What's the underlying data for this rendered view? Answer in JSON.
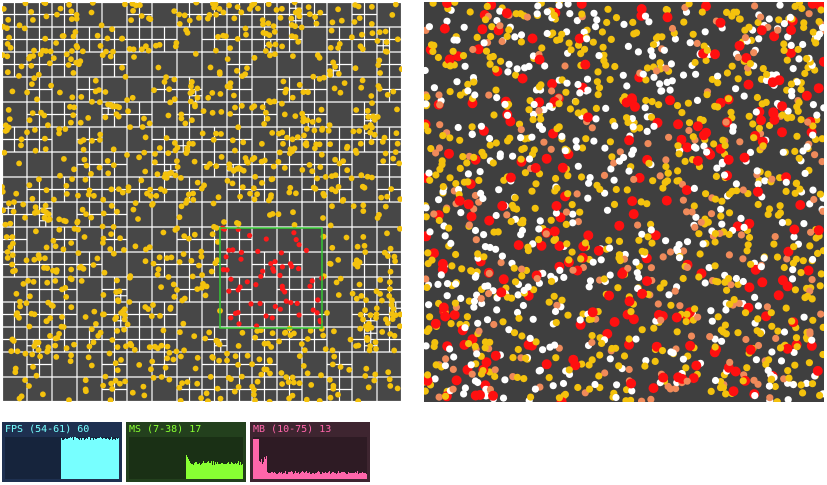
{
  "colors": {
    "grid_line": "#ffffff",
    "point_default": "#f4c20d",
    "point_in_query": "#ff1a1a",
    "query_box": "#33cc33",
    "particle_white": "#ffffff",
    "particle_yellow": "#f4c20d",
    "particle_salmon": "#f08a5a",
    "particle_red": "#ff1010"
  },
  "stats": [
    {
      "id": "fps",
      "label": "FPS (54-61) 60",
      "color": "#7ff",
      "bg": "#1e3050"
    },
    {
      "id": "ms",
      "label": "MS (7-38) 17",
      "color": "#8f3",
      "bg": "#23401d"
    },
    {
      "id": "mb",
      "label": "MB (10-75) 13",
      "color": "#f6a",
      "bg": "#3e2530"
    }
  ]
}
